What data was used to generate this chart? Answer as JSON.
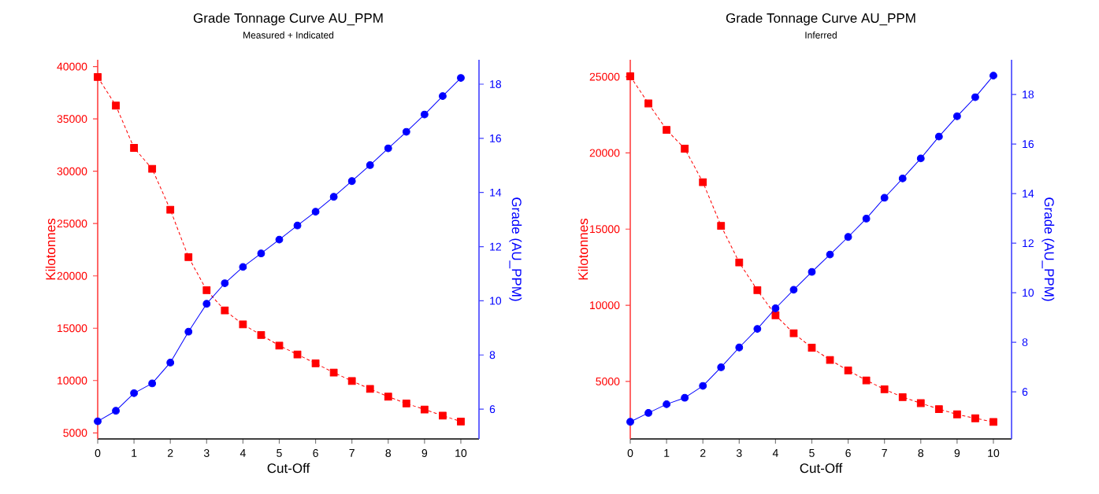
{
  "chart_data": [
    {
      "type": "line",
      "title": "Grade Tonnage Curve AU_PPM",
      "subtitle": "Measured + Indicated",
      "xlabel": "Cut-Off",
      "ylabel": "Kilotonnes",
      "y2label": "Grade (AU_PPM)",
      "x": [
        0,
        0.5,
        1,
        1.5,
        2,
        2.5,
        3,
        3.5,
        4,
        4.5,
        5,
        5.5,
        6,
        6.5,
        7,
        7.5,
        8,
        8.5,
        9,
        9.5,
        10
      ],
      "series": [
        {
          "color": "#ff0000",
          "marker": "square",
          "line_style": "dashed",
          "values": [
            39000,
            36270,
            32230,
            30230,
            26320,
            21790,
            18630,
            16700,
            15370,
            14350,
            13340,
            12490,
            11640,
            10760,
            9960,
            9200,
            8460,
            7810,
            7230,
            6650,
            6080
          ]
        },
        {
          "color": "#0000ff",
          "marker": "circle",
          "line_style": "solid",
          "axis": "y2",
          "values": [
            5.55,
            5.94,
            6.59,
            6.95,
            7.72,
            8.86,
            9.89,
            10.65,
            11.25,
            11.75,
            12.26,
            12.78,
            13.29,
            13.84,
            14.42,
            15.01,
            15.63,
            16.24,
            16.88,
            17.56,
            18.23
          ]
        }
      ],
      "xlim": [
        0,
        10.5
      ],
      "xticks": [
        0,
        1,
        2,
        3,
        4,
        5,
        6,
        7,
        8,
        9,
        10
      ],
      "ylim": [
        4420,
        40650
      ],
      "yticks": [
        5000,
        10000,
        15000,
        20000,
        25000,
        30000,
        35000,
        40000
      ],
      "y2lim": [
        4.9,
        18.9
      ],
      "y2ticks": [
        6,
        8,
        10,
        12,
        14,
        16,
        18
      ]
    },
    {
      "type": "line",
      "title": "Grade Tonnage Curve AU_PPM",
      "subtitle": "Inferred",
      "xlabel": "Cut-Off",
      "ylabel": "Kilotonnes",
      "y2label": "Grade (AU_PPM)",
      "x": [
        0,
        0.5,
        1,
        1.5,
        2,
        2.5,
        3,
        3.5,
        4,
        4.5,
        5,
        5.5,
        6,
        6.5,
        7,
        7.5,
        8,
        8.5,
        9,
        9.5,
        10
      ],
      "series": [
        {
          "color": "#ff0000",
          "marker": "square",
          "line_style": "dashed",
          "values": [
            25030,
            23250,
            21515,
            20280,
            18080,
            15215,
            12810,
            10990,
            9345,
            8160,
            7215,
            6410,
            5720,
            5070,
            4485,
            3970,
            3575,
            3180,
            2840,
            2580,
            2340
          ]
        },
        {
          "color": "#0000ff",
          "marker": "circle",
          "line_style": "solid",
          "axis": "y2",
          "values": [
            4.79,
            5.15,
            5.5,
            5.76,
            6.24,
            6.99,
            7.79,
            8.54,
            9.37,
            10.12,
            10.84,
            11.54,
            12.25,
            12.99,
            13.83,
            14.61,
            15.42,
            16.3,
            17.12,
            17.89,
            18.76
          ]
        }
      ],
      "xlim": [
        0,
        10.5
      ],
      "xticks": [
        0,
        1,
        2,
        3,
        4,
        5,
        6,
        7,
        8,
        9,
        10
      ],
      "ylim": [
        1225,
        26115
      ],
      "yticks": [
        5000,
        10000,
        15000,
        20000,
        25000
      ],
      "y2lim": [
        4.1,
        19.4
      ],
      "y2ticks": [
        6,
        8,
        10,
        12,
        14,
        16,
        18
      ]
    }
  ]
}
